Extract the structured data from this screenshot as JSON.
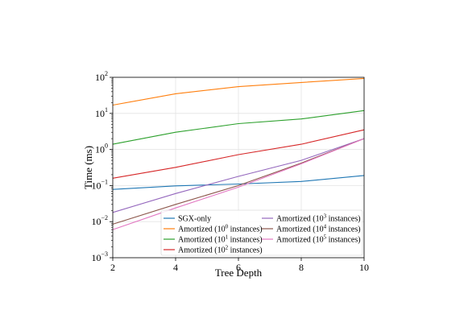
{
  "chart_data": {
    "type": "line",
    "xlabel": "Tree Depth",
    "ylabel": "Time (ms)",
    "x_scale": "linear",
    "y_scale": "log",
    "xlim": [
      2,
      10
    ],
    "ylim": [
      0.001,
      100
    ],
    "x_ticks": [
      {
        "value": 2,
        "label": "2"
      },
      {
        "value": 4,
        "label": "4"
      },
      {
        "value": 6,
        "label": "6"
      },
      {
        "value": 8,
        "label": "8"
      },
      {
        "value": 10,
        "label": "10"
      }
    ],
    "y_ticks": [
      {
        "value": 0.001,
        "base": "10",
        "exp": "−3"
      },
      {
        "value": 0.01,
        "base": "10",
        "exp": "−2"
      },
      {
        "value": 0.1,
        "base": "10",
        "exp": "−1"
      },
      {
        "value": 1,
        "base": "10",
        "exp": "0"
      },
      {
        "value": 10,
        "base": "10",
        "exp": "1"
      },
      {
        "value": 100,
        "base": "10",
        "exp": "2"
      }
    ],
    "grid": true,
    "legend_position": "lower-right",
    "legend_columns": 2,
    "x": [
      2,
      4,
      6,
      8,
      10
    ],
    "series": [
      {
        "name": "SGX-only",
        "label_parts": [
          "SGX-only"
        ],
        "color": "#1f77b4",
        "values": [
          0.078,
          0.098,
          0.11,
          0.13,
          0.19
        ]
      },
      {
        "name": "Amortized (10^0 instances)",
        "label_parts": [
          "Amortized (10",
          "0",
          " instances)"
        ],
        "color": "#ff7f0e",
        "values": [
          17,
          35,
          55,
          72,
          93
        ]
      },
      {
        "name": "Amortized (10^1 instances)",
        "label_parts": [
          "Amortized (10",
          "1",
          " instances)"
        ],
        "color": "#2ca02c",
        "values": [
          1.4,
          3.0,
          5.2,
          7.0,
          12.0
        ]
      },
      {
        "name": "Amortized (10^2 instances)",
        "label_parts": [
          "Amortized (10",
          "2",
          " instances)"
        ],
        "color": "#d62728",
        "values": [
          0.16,
          0.32,
          0.72,
          1.4,
          3.5
        ]
      },
      {
        "name": "Amortized (10^3 instances)",
        "label_parts": [
          "Amortized (10",
          "3",
          " instances)"
        ],
        "color": "#9467bd",
        "values": [
          0.018,
          0.06,
          0.18,
          0.5,
          2.0
        ]
      },
      {
        "name": "Amortized (10^4 instances)",
        "label_parts": [
          "Amortized (10",
          "4",
          " instances)"
        ],
        "color": "#8c564b",
        "values": [
          0.0085,
          0.03,
          0.1,
          0.42,
          2.0
        ]
      },
      {
        "name": "Amortized (10^5 instances)",
        "label_parts": [
          "Amortized (10",
          "5",
          " instances)"
        ],
        "color": "#e377c2",
        "values": [
          0.006,
          0.024,
          0.09,
          0.4,
          2.0
        ]
      }
    ]
  }
}
